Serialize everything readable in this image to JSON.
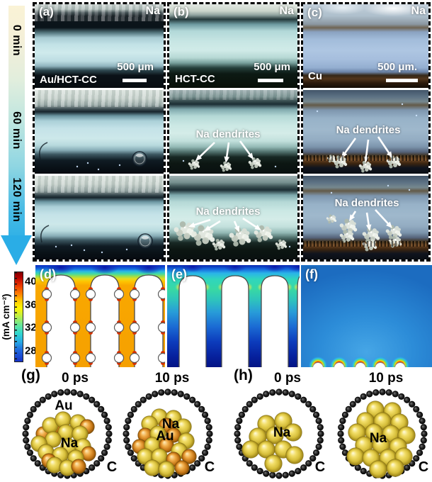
{
  "timeline": {
    "labels": [
      "0 min",
      "60 min",
      "120 min"
    ]
  },
  "micro": {
    "na": "Na",
    "dendrites": "Na dendrites",
    "cols": [
      {
        "panel": "(a)",
        "electrode": "Au/HCT-CC",
        "scale": "500 μm"
      },
      {
        "panel": "(b)",
        "electrode": "HCT-CC",
        "scale": "500 μm"
      },
      {
        "panel": "(c)",
        "electrode": "Cu",
        "scale": "500 μm."
      }
    ]
  },
  "sim": {
    "unit": "(mA cm⁻²)",
    "ticks": [
      "40",
      "36",
      "32",
      "28"
    ],
    "panels": [
      "(d)",
      "(e)",
      "(f)"
    ]
  },
  "md": {
    "g": {
      "panel": "(g)",
      "t0": "0 ps",
      "t1": "10 ps",
      "au": "Au",
      "na": "Na",
      "c": "C"
    },
    "h": {
      "panel": "(h)",
      "t0": "0 ps",
      "t1": "10 ps",
      "na": "Na",
      "c": "C"
    }
  }
}
